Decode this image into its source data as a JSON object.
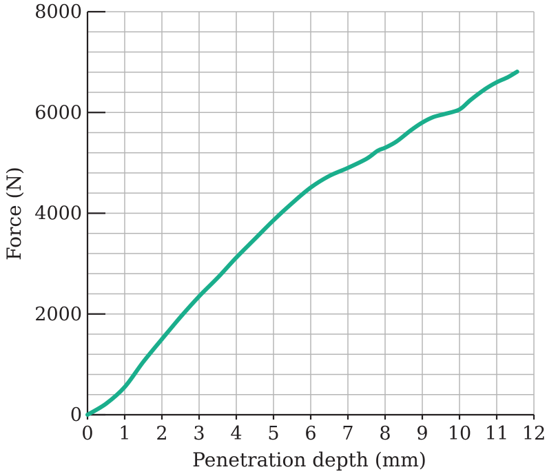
{
  "chart_data": {
    "type": "line",
    "xlabel": "Penetration depth (mm)",
    "ylabel": "Force (N)",
    "xlim": [
      0,
      12
    ],
    "ylim": [
      0,
      8000
    ],
    "x_ticks": [
      "0",
      "1",
      "2",
      "3",
      "4",
      "5",
      "6",
      "7",
      "8",
      "9",
      "10",
      "11",
      "12"
    ],
    "y_ticks": [
      "0",
      "2000",
      "4000",
      "6000",
      "8000"
    ],
    "grid": true,
    "x_minor_step": 1,
    "y_minor_step": 400,
    "series": [
      {
        "color": "#1aae8c",
        "x": [
          0,
          0.5,
          1.0,
          1.5,
          2.0,
          2.5,
          3.0,
          3.5,
          4.0,
          4.5,
          5.0,
          5.5,
          6.0,
          6.5,
          7.0,
          7.5,
          7.8,
          8.0,
          8.3,
          8.7,
          9.0,
          9.3,
          9.6,
          10.0,
          10.3,
          10.7,
          11.0,
          11.3,
          11.55
        ],
        "y": [
          0,
          220,
          550,
          1050,
          1500,
          1940,
          2350,
          2720,
          3120,
          3490,
          3860,
          4200,
          4510,
          4740,
          4900,
          5080,
          5240,
          5300,
          5420,
          5650,
          5800,
          5910,
          5970,
          6060,
          6250,
          6470,
          6600,
          6700,
          6810
        ]
      }
    ]
  }
}
